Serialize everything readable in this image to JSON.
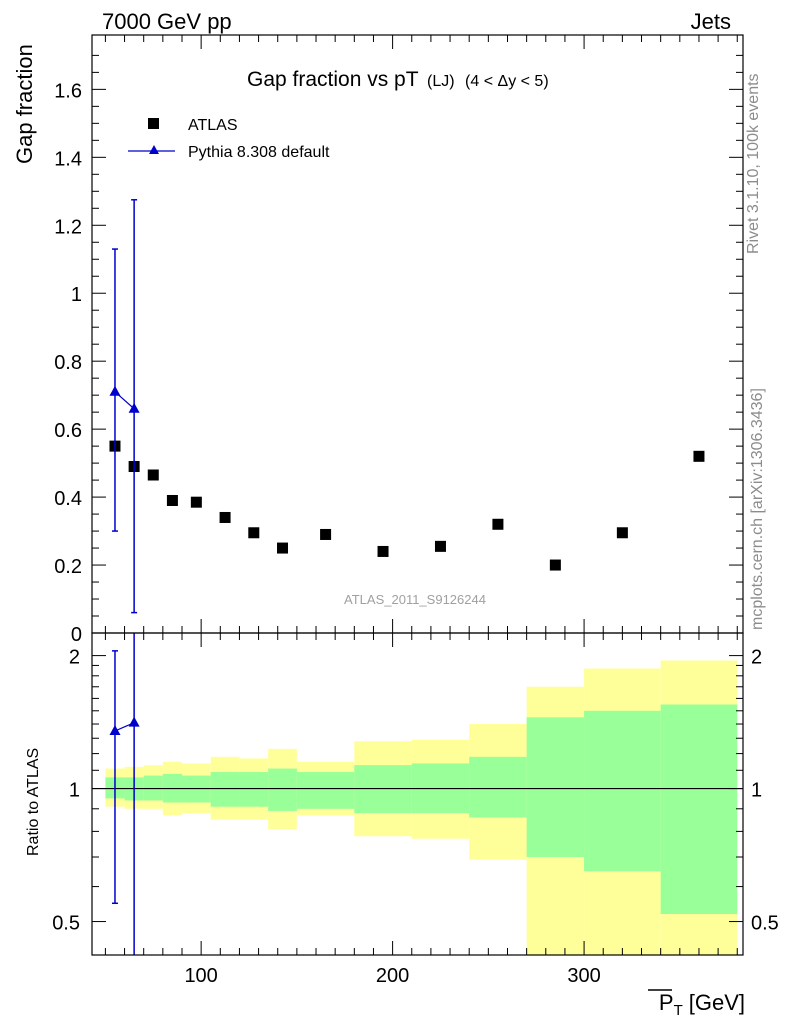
{
  "header": {
    "left": "7000 GeV pp",
    "right": "Jets"
  },
  "side_labels": {
    "rivet": "Rivet 3.1.10,  100k events",
    "mcplots": "mcplots.cern.ch [arXiv:1306.3436]"
  },
  "watermark": "ATLAS_2011_S9126244",
  "colors": {
    "atlas": "#000000",
    "pythia": "#0000cc",
    "band_inner": "#99ff99",
    "band_outer": "#ffff99",
    "side_text": "#8c8c8c"
  },
  "chart_data": [
    {
      "type": "scatter",
      "title": "Gap fraction vs pT",
      "title_sub": "(LJ)",
      "title_cut": "(4 < Δy < 5)",
      "ylabel": "Gap fraction",
      "xlim": [
        43,
        383
      ],
      "ylim": [
        0,
        1.76
      ],
      "yticks": [
        0,
        0.2,
        0.4,
        0.6,
        0.8,
        1,
        1.2,
        1.4,
        1.6
      ],
      "ytick_labels": [
        "0",
        "0.2",
        "0.4",
        "0.6",
        "0.8",
        "1",
        "1.2",
        "1.4",
        "1.6"
      ],
      "legend_position": "top-left",
      "series": [
        {
          "name": "ATLAS",
          "marker": "square",
          "x": [
            55,
            65,
            75,
            85,
            97.5,
            112.5,
            127.5,
            142.5,
            165,
            195,
            225,
            255,
            285,
            320,
            360
          ],
          "y": [
            0.55,
            0.49,
            0.465,
            0.39,
            0.385,
            0.34,
            0.295,
            0.25,
            0.29,
            0.24,
            0.255,
            0.32,
            0.2,
            0.295,
            0.52
          ]
        },
        {
          "name": "Pythia 8.308 default",
          "marker": "triangle",
          "x": [
            55,
            65
          ],
          "y": [
            0.71,
            0.66
          ],
          "yerr_low": [
            0.3,
            0.06
          ],
          "yerr_high": [
            1.13,
            1.275
          ]
        }
      ]
    },
    {
      "type": "area",
      "ylabel": "Ratio to ATLAS",
      "xlabel": "P̄T [GeV]",
      "xlabel_main": "P",
      "xlabel_sub": "T",
      "xlabel_unit": "[GeV]",
      "xlim": [
        43,
        383
      ],
      "ylim": [
        0.42,
        2.25
      ],
      "log_y": true,
      "yticks": [
        0.5,
        1,
        2
      ],
      "ytick_labels": [
        "0.5",
        "1",
        "2"
      ],
      "xticks": [
        100,
        200,
        300
      ],
      "xtick_labels": [
        "100",
        "200",
        "300"
      ],
      "bins": [
        {
          "x0": 50,
          "x1": 60,
          "inner": [
            0.95,
            1.06
          ],
          "outer": [
            0.91,
            1.11
          ]
        },
        {
          "x0": 60,
          "x1": 70,
          "inner": [
            0.94,
            1.06
          ],
          "outer": [
            0.9,
            1.12
          ]
        },
        {
          "x0": 70,
          "x1": 80,
          "inner": [
            0.94,
            1.07
          ],
          "outer": [
            0.9,
            1.13
          ]
        },
        {
          "x0": 80,
          "x1": 90,
          "inner": [
            0.93,
            1.08
          ],
          "outer": [
            0.87,
            1.15
          ]
        },
        {
          "x0": 90,
          "x1": 105,
          "inner": [
            0.93,
            1.07
          ],
          "outer": [
            0.88,
            1.14
          ]
        },
        {
          "x0": 105,
          "x1": 120,
          "inner": [
            0.91,
            1.09
          ],
          "outer": [
            0.85,
            1.18
          ]
        },
        {
          "x0": 120,
          "x1": 135,
          "inner": [
            0.91,
            1.09
          ],
          "outer": [
            0.85,
            1.17
          ]
        },
        {
          "x0": 135,
          "x1": 150,
          "inner": [
            0.89,
            1.11
          ],
          "outer": [
            0.81,
            1.23
          ]
        },
        {
          "x0": 150,
          "x1": 180,
          "inner": [
            0.9,
            1.09
          ],
          "outer": [
            0.87,
            1.15
          ]
        },
        {
          "x0": 180,
          "x1": 210,
          "inner": [
            0.88,
            1.13
          ],
          "outer": [
            0.78,
            1.28
          ]
        },
        {
          "x0": 210,
          "x1": 240,
          "inner": [
            0.88,
            1.14
          ],
          "outer": [
            0.77,
            1.29
          ]
        },
        {
          "x0": 240,
          "x1": 270,
          "inner": [
            0.86,
            1.18
          ],
          "outer": [
            0.69,
            1.4
          ]
        },
        {
          "x0": 270,
          "x1": 300,
          "inner": [
            0.7,
            1.45
          ],
          "outer": [
            0.4,
            1.7
          ]
        },
        {
          "x0": 300,
          "x1": 340,
          "inner": [
            0.65,
            1.5
          ],
          "outer": [
            0.4,
            1.87
          ]
        },
        {
          "x0": 340,
          "x1": 380,
          "inner": [
            0.52,
            1.55
          ],
          "outer": [
            0.4,
            1.95
          ]
        }
      ],
      "ratio_series": [
        {
          "name": "Pythia 8.308 default",
          "x": [
            55,
            65
          ],
          "y": [
            1.35,
            1.41
          ],
          "yerr_low": [
            0.55,
            0.38
          ],
          "yerr_high": [
            2.05,
            2.3
          ]
        }
      ]
    }
  ]
}
